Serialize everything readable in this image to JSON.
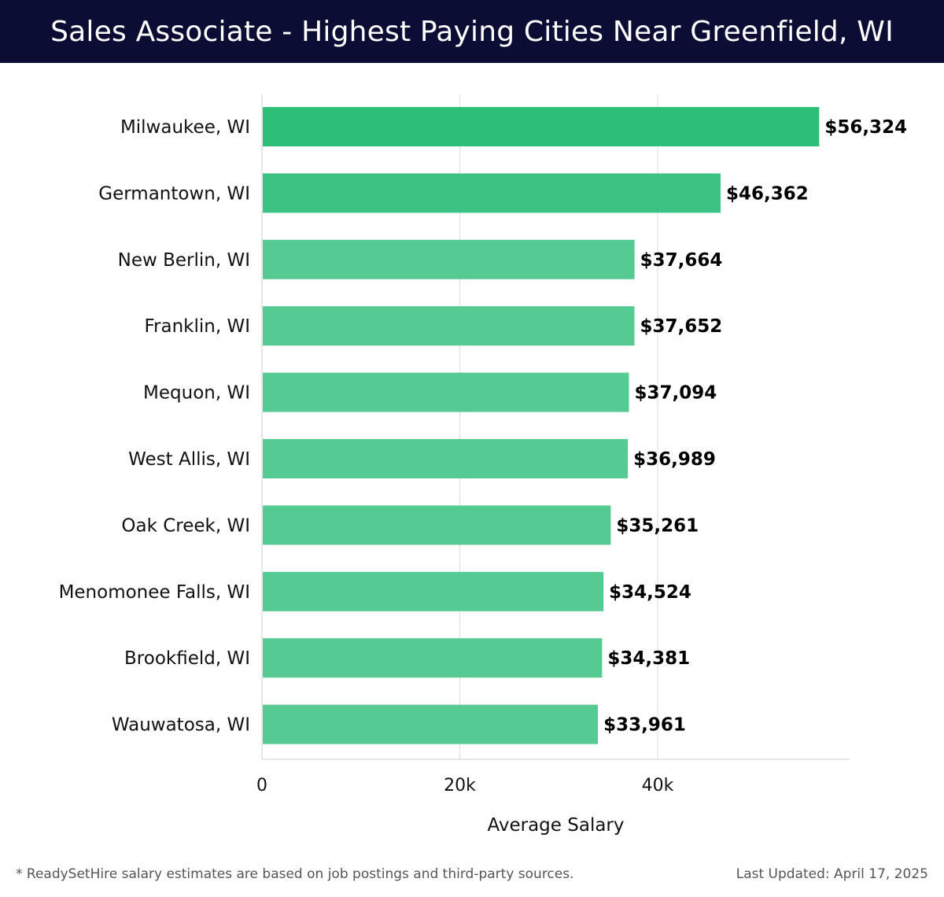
{
  "header": {
    "title": "Sales Associate - Highest Paying Cities Near Greenfield, WI"
  },
  "chart_data": {
    "type": "bar",
    "orientation": "horizontal",
    "categories": [
      "Milwaukee, WI",
      "Germantown, WI",
      "New Berlin, WI",
      "Franklin, WI",
      "Mequon, WI",
      "West Allis, WI",
      "Oak Creek, WI",
      "Menomonee Falls, WI",
      "Brookfield, WI",
      "Wauwatosa, WI"
    ],
    "values": [
      56324,
      46362,
      37664,
      37652,
      37094,
      36989,
      35261,
      34524,
      34381,
      33961
    ],
    "value_labels": [
      "$56,324",
      "$46,362",
      "$37,664",
      "$37,652",
      "$37,094",
      "$36,989",
      "$35,261",
      "$34,524",
      "$34,381",
      "$33,961"
    ],
    "xlabel": "Average Salary",
    "ylabel": "",
    "xlim": [
      0,
      59400
    ],
    "xticks": [
      0,
      20000,
      40000
    ],
    "xtick_labels": [
      "0",
      "20k",
      "40k"
    ],
    "grid": "vertical",
    "colors": {
      "top_bar": "#2dbe78",
      "second_bar": "#3cc383",
      "bar": "#56ca93"
    }
  },
  "footer": {
    "note": "* ReadySetHire salary estimates are based on job postings and third-party sources.",
    "updated": "Last Updated: April 17, 2025"
  }
}
